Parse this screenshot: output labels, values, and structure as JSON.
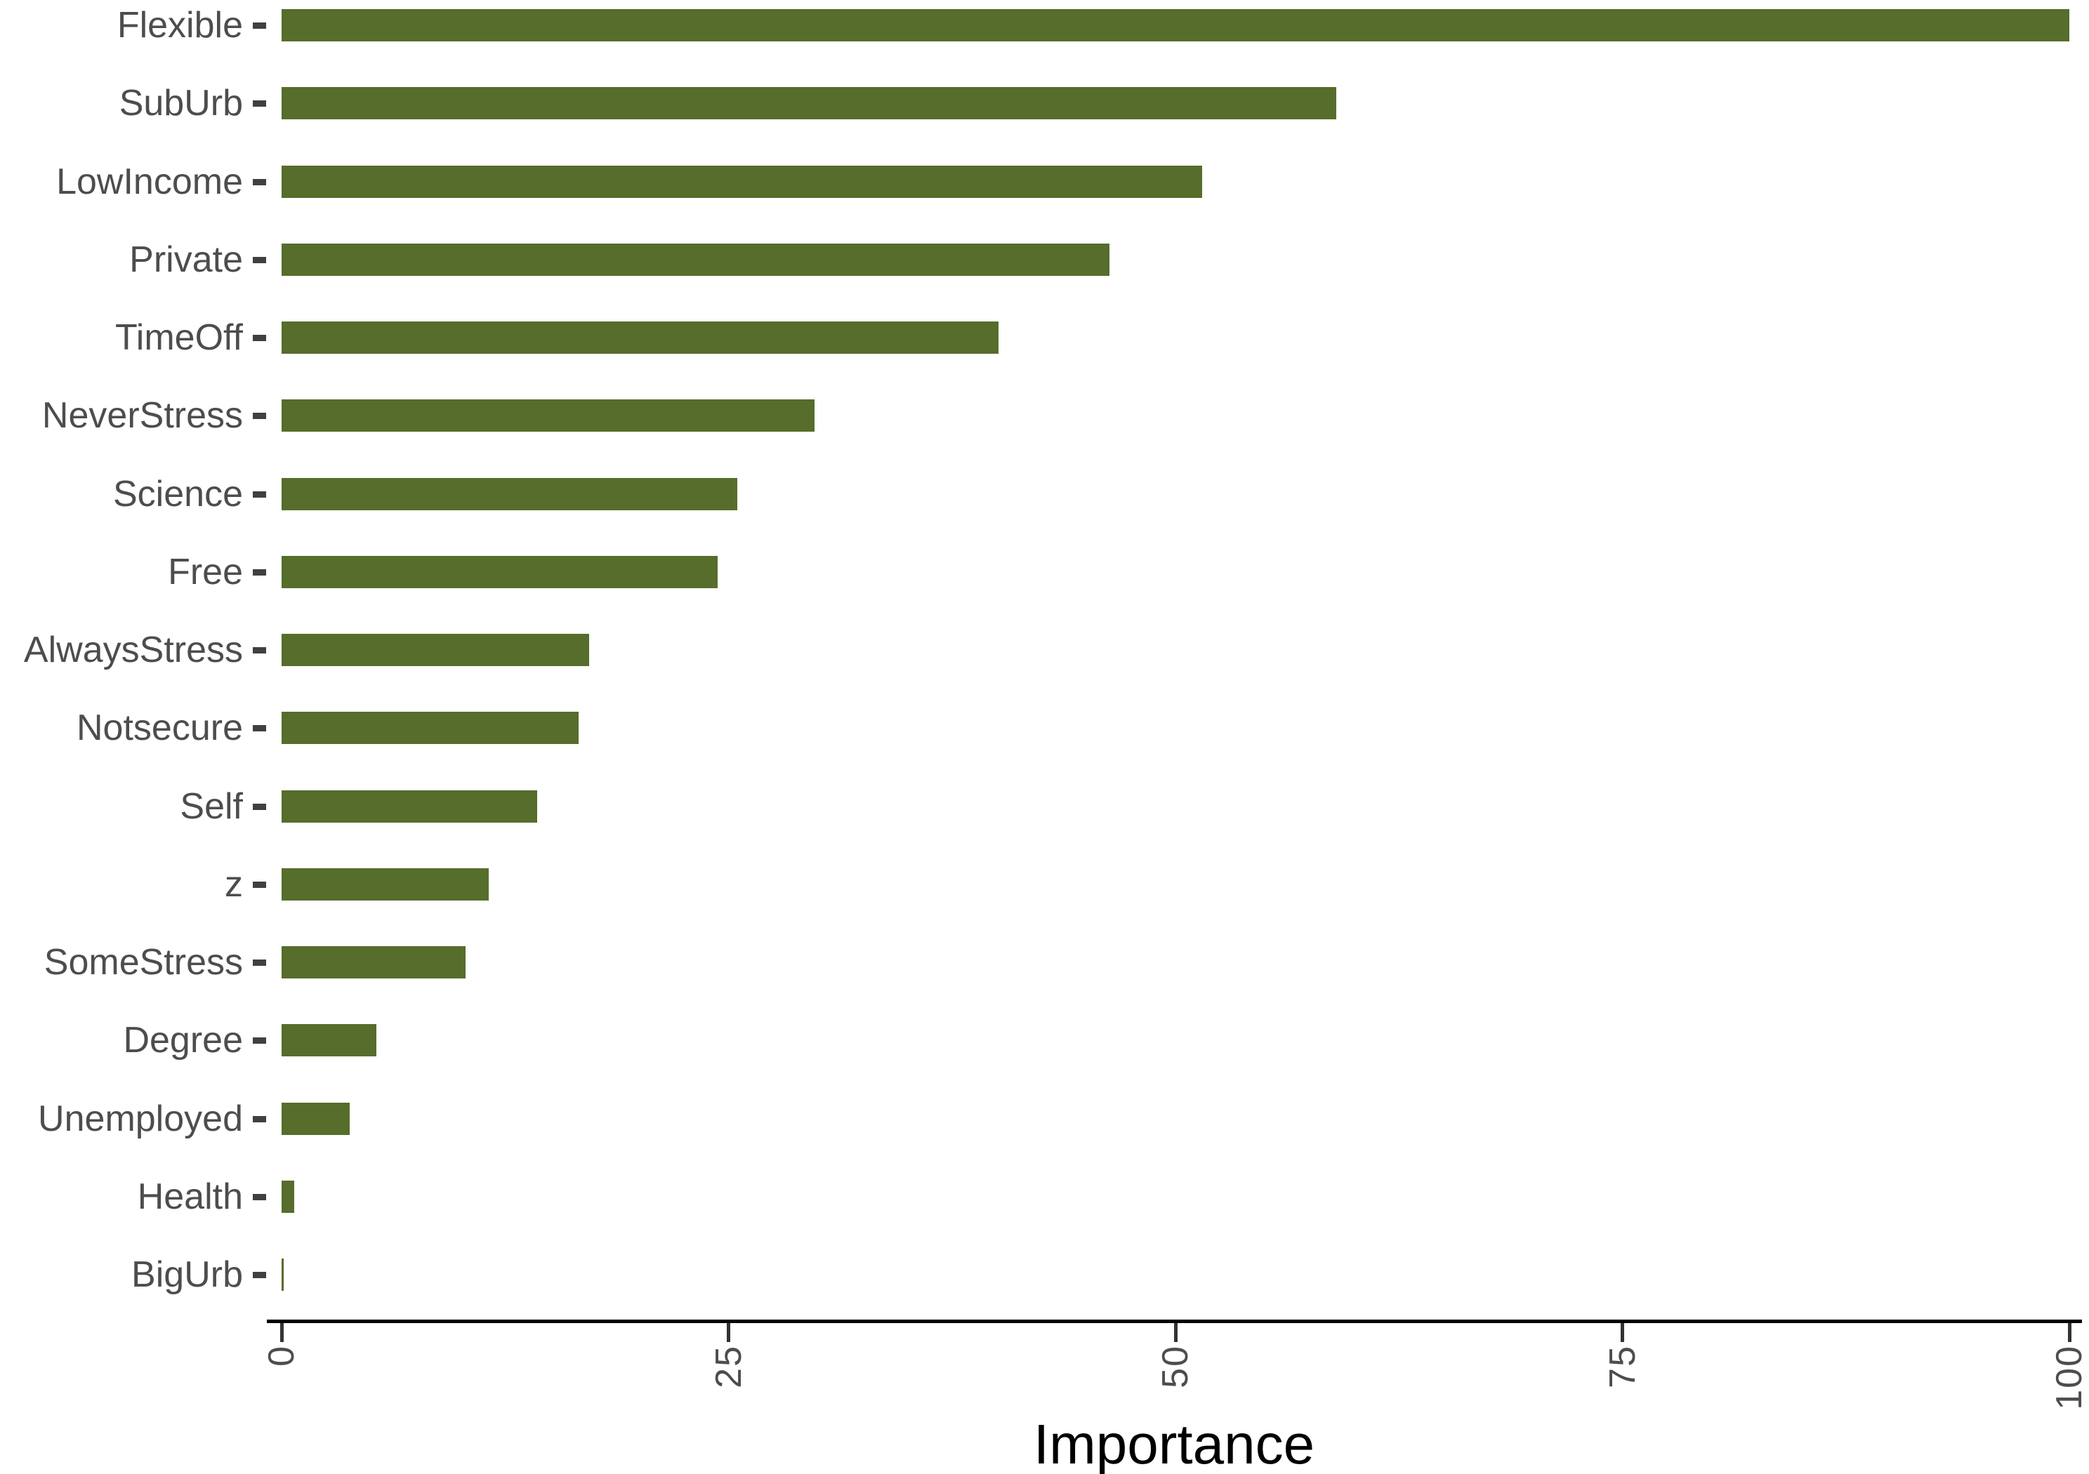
{
  "chart_data": {
    "type": "bar",
    "orientation": "horizontal",
    "title": "",
    "xlabel": "Importance",
    "ylabel": "",
    "categories": [
      "Flexible",
      "SubUrb",
      "LowIncome",
      "Private",
      "TimeOff",
      "NeverStress",
      "Science",
      "Free",
      "AlwaysStress",
      "Notsecure",
      "Self",
      "z",
      "SomeStress",
      "Degree",
      "Unemployed",
      "Health",
      "BigUrb"
    ],
    "values": [
      100,
      59.0,
      51.5,
      46.3,
      40.1,
      29.8,
      25.5,
      24.4,
      17.2,
      16.6,
      14.3,
      11.6,
      10.3,
      5.3,
      3.8,
      0.7,
      0.1
    ],
    "x_ticks": [
      0,
      25,
      50,
      75,
      100
    ],
    "xlim": [
      0,
      100
    ],
    "grid": false,
    "legend": false,
    "bar_color": "#566D2B",
    "label_color": "#4d4d4d",
    "axis_color": "#000000"
  }
}
